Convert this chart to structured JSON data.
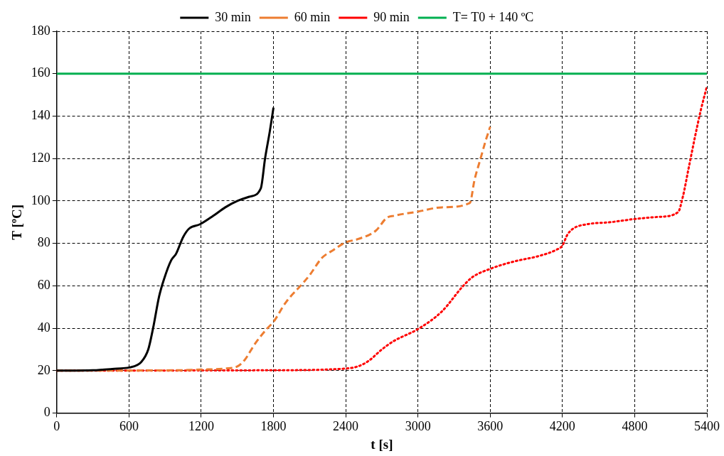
{
  "chart_data": {
    "type": "line",
    "xlabel": "t [s]",
    "ylabel": "T [ºC]",
    "xlim": [
      0,
      5400
    ],
    "xticks": [
      0,
      600,
      1200,
      1800,
      2400,
      3000,
      3600,
      4200,
      4800,
      5400
    ],
    "ylim": [
      0,
      180
    ],
    "yticks": [
      0,
      20,
      40,
      60,
      80,
      100,
      120,
      140,
      160,
      180
    ],
    "grid": true,
    "legend": "top",
    "marker": "none",
    "series": [
      {
        "name": "30 min",
        "color": "#000000",
        "line_style": "solid",
        "x": [
          0,
          300,
          500,
          600,
          700,
          760,
          800,
          850,
          890,
          950,
          990,
          1050,
          1100,
          1190,
          1300,
          1400,
          1500,
          1600,
          1695,
          1730,
          1770,
          1800
        ],
        "values": [
          20,
          20.2,
          21,
          21.5,
          24,
          30,
          40,
          55,
          63,
          72,
          75,
          83,
          87,
          89,
          93,
          97,
          100,
          102,
          106,
          120,
          133,
          144
        ]
      },
      {
        "name": "60 min",
        "color": "#ed7d31",
        "line_style": "dashed",
        "x": [
          0,
          1000,
          1200,
          1400,
          1500,
          1560,
          1650,
          1750,
          1800,
          1900,
          2040,
          2100,
          2200,
          2300,
          2400,
          2500,
          2650,
          2740,
          2800,
          3000,
          3200,
          3430,
          3470,
          3520,
          3560,
          3600
        ],
        "values": [
          20,
          20.2,
          20.5,
          21,
          22,
          25,
          33,
          40,
          43,
          52,
          61,
          65,
          73,
          77,
          80.5,
          82,
          86,
          92,
          93,
          95,
          97,
          99,
          110,
          120,
          128,
          135
        ]
      },
      {
        "name": "90 min",
        "color": "#ff0000",
        "line_style": "dotted",
        "x": [
          0,
          1800,
          2400,
          2500,
          2590,
          2700,
          2800,
          3000,
          3200,
          3370,
          3450,
          3600,
          3800,
          4000,
          4150,
          4200,
          4240,
          4290,
          4400,
          4600,
          4800,
          5000,
          5160,
          5200,
          5250,
          5300,
          5350,
          5400
        ],
        "values": [
          20,
          20.2,
          21,
          22,
          24.6,
          30,
          34,
          39.6,
          48,
          59.6,
          64,
          68,
          71.5,
          74,
          77,
          79,
          84,
          87,
          89,
          90,
          91.5,
          92.5,
          94.7,
          102,
          116,
          130,
          143,
          154
        ]
      },
      {
        "name": "T= T0 + 140 ºC",
        "color": "#00b050",
        "line_style": "solid",
        "x": [
          0,
          5400
        ],
        "values": [
          160,
          160
        ]
      }
    ]
  }
}
